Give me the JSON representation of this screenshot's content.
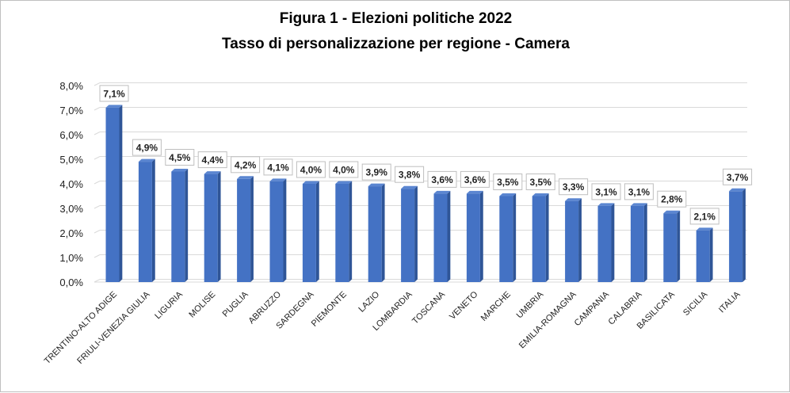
{
  "chart_data": {
    "type": "bar",
    "title": "Figura 1 - Elezioni politiche 2022",
    "subtitle": "Tasso di personalizzazione per regione - Camera",
    "xlabel": "",
    "ylabel": "",
    "ylim": [
      0,
      8
    ],
    "y_ticks": [
      "0,0%",
      "1,0%",
      "2,0%",
      "3,0%",
      "4,0%",
      "5,0%",
      "6,0%",
      "7,0%",
      "8,0%"
    ],
    "grid": true,
    "legend": "none",
    "bar_color": "#4472C4",
    "categories": [
      "TRENTINO-ALTO ADIGE",
      "FRIULI-VENEZIA GIULIA",
      "LIGURIA",
      "MOLISE",
      "PUGLIA",
      "ABRUZZO",
      "SARDEGNA",
      "PIEMONTE",
      "LAZIO",
      "LOMBARDIA",
      "TOSCANA",
      "VENETO",
      "MARCHE",
      "UMBRIA",
      "EMILIA-ROMAGNA",
      "CAMPANIA",
      "CALABRIA",
      "BASILICATA",
      "SICILIA",
      "ITALIA"
    ],
    "values": [
      7.1,
      4.9,
      4.5,
      4.4,
      4.2,
      4.1,
      4.0,
      4.0,
      3.9,
      3.8,
      3.6,
      3.6,
      3.5,
      3.5,
      3.3,
      3.1,
      3.1,
      2.8,
      2.1,
      3.7
    ],
    "data_labels": [
      "7,1%",
      "4,9%",
      "4,5%",
      "4,4%",
      "4,2%",
      "4,1%",
      "4,0%",
      "4,0%",
      "3,9%",
      "3,8%",
      "3,6%",
      "3,6%",
      "3,5%",
      "3,5%",
      "3,3%",
      "3,1%",
      "3,1%",
      "2,8%",
      "2,1%",
      "3,7%"
    ]
  }
}
